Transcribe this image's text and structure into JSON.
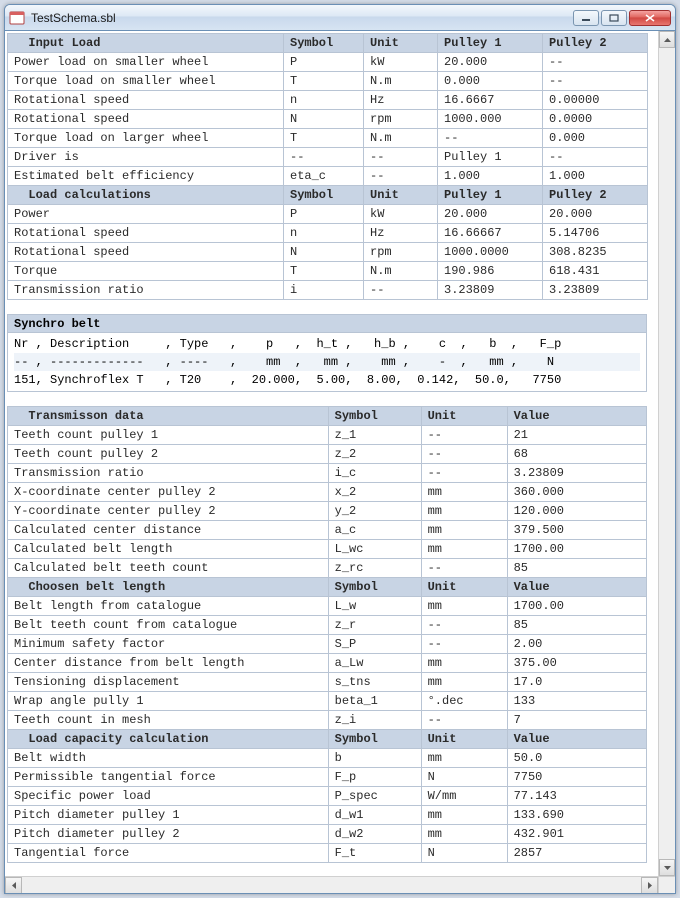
{
  "window": {
    "title": "TestSchema.sbl"
  },
  "sections": {
    "input_load": {
      "header": {
        "title": "Input Load",
        "sym": "Symbol",
        "unit": "Unit",
        "p1": "Pulley 1",
        "p2": "Pulley 2"
      },
      "rows": [
        {
          "name": "Power load on smaller wheel",
          "sym": "P",
          "unit": "kW",
          "v1": "20.000",
          "v2": "--"
        },
        {
          "name": "Torque load on smaller wheel",
          "sym": "T",
          "unit": "N.m",
          "v1": "0.000",
          "v2": "--"
        },
        {
          "name": "Rotational speed",
          "sym": "n",
          "unit": "Hz",
          "v1": "16.6667",
          "v2": "0.00000"
        },
        {
          "name": "Rotational speed",
          "sym": "N",
          "unit": "rpm",
          "v1": "1000.000",
          "v2": "0.0000"
        },
        {
          "name": "Torque load on larger wheel",
          "sym": "T",
          "unit": "N.m",
          "v1": "--",
          "v2": "0.000"
        },
        {
          "name": "Driver is",
          "sym": "--",
          "unit": "--",
          "v1": "Pulley 1",
          "v2": "--"
        },
        {
          "name": "Estimated belt efficiency",
          "sym": "eta_c",
          "unit": "--",
          "v1": "1.000",
          "v2": "1.000"
        }
      ]
    },
    "load_calc": {
      "header": {
        "title": "Load calculations",
        "sym": "Symbol",
        "unit": "Unit",
        "p1": "Pulley 1",
        "p2": "Pulley 2"
      },
      "rows": [
        {
          "name": "Power",
          "sym": "P",
          "unit": "kW",
          "v1": "20.000",
          "v2": "20.000"
        },
        {
          "name": "Rotational speed",
          "sym": "n",
          "unit": "Hz",
          "v1": "16.66667",
          "v2": "5.14706"
        },
        {
          "name": "Rotational speed",
          "sym": "N",
          "unit": "rpm",
          "v1": "1000.0000",
          "v2": "308.8235"
        },
        {
          "name": "Torque",
          "sym": "T",
          "unit": "N.m",
          "v1": "190.986",
          "v2": "618.431"
        },
        {
          "name": "Transmission ratio",
          "sym": "i",
          "unit": "--",
          "v1": "3.23809",
          "v2": "3.23809"
        }
      ]
    },
    "synchro_belt": {
      "title": "Synchro belt",
      "line1": "Nr , Description     , Type   ,    p   ,  h_t ,   h_b ,    c  ,   b  ,   F_p",
      "line2": "-- , -------------   , ----   ,    mm  ,   mm ,    mm ,    -  ,   mm ,    N",
      "line3": "151, Synchroflex T   , T20    ,  20.000,  5.00,  8.00,  0.142,  50.0,   7750"
    },
    "trans_data": {
      "header": {
        "title": "Transmisson data",
        "sym": "Symbol",
        "unit": "Unit",
        "val": "Value"
      },
      "rows": [
        {
          "name": "Teeth count pulley 1",
          "sym": "z_1",
          "unit": "--",
          "val": "21"
        },
        {
          "name": "Teeth count pulley 2",
          "sym": "z_2",
          "unit": "--",
          "val": "68"
        },
        {
          "name": "Transmission ratio",
          "sym": "i_c",
          "unit": "--",
          "val": "3.23809"
        },
        {
          "name": "X-coordinate center pulley 2",
          "sym": "x_2",
          "unit": "mm",
          "val": "360.000"
        },
        {
          "name": "Y-coordinate center pulley 2",
          "sym": "y_2",
          "unit": "mm",
          "val": "120.000"
        },
        {
          "name": "Calculated center distance",
          "sym": "a_c",
          "unit": "mm",
          "val": "379.500"
        },
        {
          "name": "Calculated belt length",
          "sym": "L_wc",
          "unit": "mm",
          "val": "1700.00"
        },
        {
          "name": "Calculated belt teeth count",
          "sym": "z_rc",
          "unit": "--",
          "val": "85"
        }
      ]
    },
    "chosen_belt": {
      "header": {
        "title": "Choosen belt length",
        "sym": "Symbol",
        "unit": "Unit",
        "val": "Value"
      },
      "rows": [
        {
          "name": "Belt length from catalogue",
          "sym": "L_w",
          "unit": "mm",
          "val": "1700.00"
        },
        {
          "name": "Belt teeth count from catalogue",
          "sym": "z_r",
          "unit": "--",
          "val": "85"
        },
        {
          "name": "Minimum safety factor",
          "sym": "S_P",
          "unit": "--",
          "val": "2.00"
        },
        {
          "name": "Center distance from belt length",
          "sym": "a_Lw",
          "unit": "mm",
          "val": "375.00"
        },
        {
          "name": "Tensioning displacement",
          "sym": "s_tns",
          "unit": "mm",
          "val": "17.0"
        },
        {
          "name": "Wrap angle pully 1",
          "sym": "beta_1",
          "unit": "°.dec",
          "val": "133"
        },
        {
          "name": "Teeth count in mesh",
          "sym": "z_i",
          "unit": "--",
          "val": "7"
        }
      ]
    },
    "load_cap": {
      "header": {
        "title": "Load capacity calculation",
        "sym": "Symbol",
        "unit": "Unit",
        "val": "Value"
      },
      "rows": [
        {
          "name": "Belt width",
          "sym": "b",
          "unit": "mm",
          "val": "50.0"
        },
        {
          "name": "Permissible tangential force",
          "sym": "F_p",
          "unit": "N",
          "val": "7750"
        },
        {
          "name": "Specific power load",
          "sym": "P_spec",
          "unit": "W/mm",
          "val": "77.143"
        },
        {
          "name": "Pitch diameter pulley 1",
          "sym": "d_w1",
          "unit": "mm",
          "val": "133.690"
        },
        {
          "name": "Pitch diameter pulley 2",
          "sym": "d_w2",
          "unit": "mm",
          "val": "432.901"
        },
        {
          "name": "Tangential force",
          "sym": "F_t",
          "unit": "N",
          "val": "2857"
        }
      ]
    }
  },
  "colors": {
    "header_bg": "#c8d4e4",
    "row_border": "#b8c4d4",
    "alt_row": "#eef3f9"
  }
}
